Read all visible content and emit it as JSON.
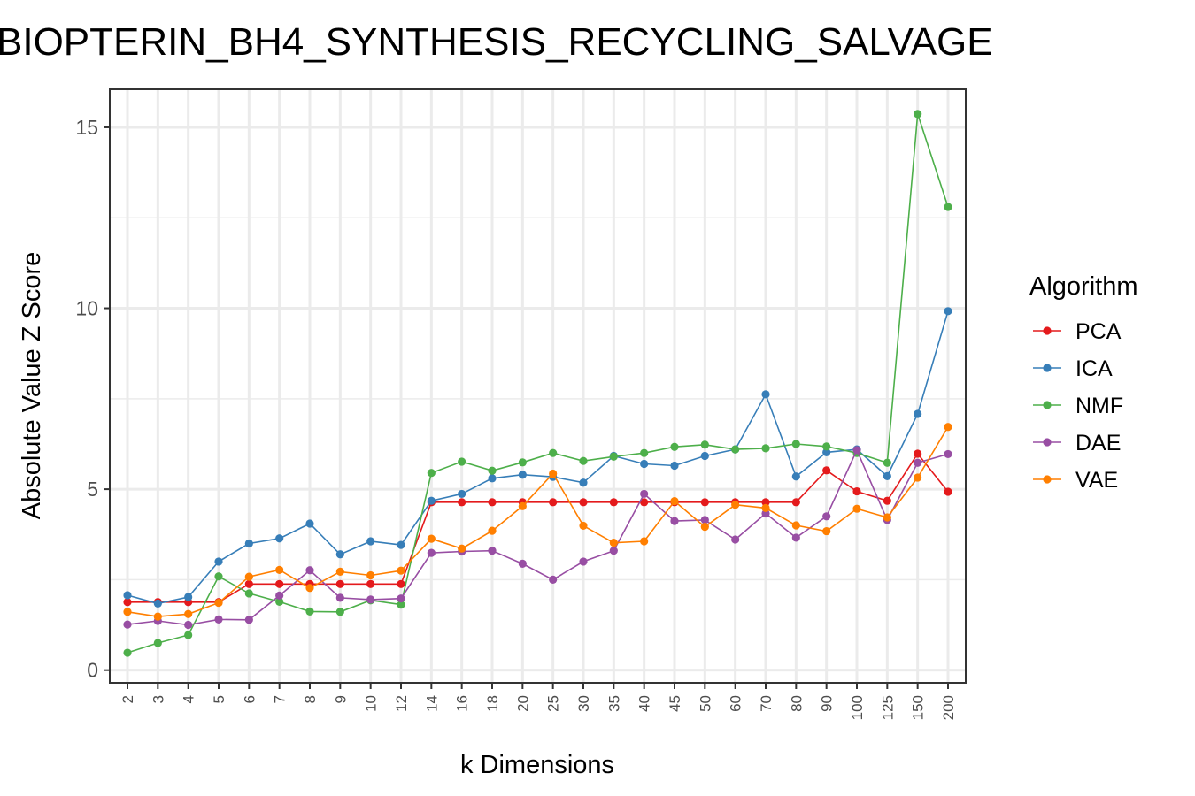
{
  "chart_data": {
    "type": "line",
    "title": "BIOPTERIN_BH4_SYNTHESIS_RECYCLING_SALVAGE",
    "xlabel": "k Dimensions",
    "ylabel": "Absolute Value Z Score",
    "ylim": [
      -0.35,
      16.05
    ],
    "yticks": [
      0,
      5,
      10,
      15
    ],
    "grid": true,
    "legend_title": "Algorithm",
    "legend_position": "right",
    "categories": [
      "2",
      "3",
      "4",
      "5",
      "6",
      "7",
      "8",
      "9",
      "10",
      "12",
      "14",
      "16",
      "18",
      "20",
      "25",
      "30",
      "35",
      "40",
      "45",
      "50",
      "60",
      "70",
      "80",
      "90",
      "100",
      "125",
      "150",
      "200"
    ],
    "series": [
      {
        "name": "PCA",
        "color": "#e41a1c",
        "values": [
          1.88,
          1.88,
          1.88,
          1.88,
          2.38,
          2.38,
          2.38,
          2.38,
          2.38,
          2.38,
          4.64,
          4.64,
          4.64,
          4.64,
          4.64,
          4.64,
          4.64,
          4.64,
          4.64,
          4.64,
          4.64,
          4.64,
          4.64,
          5.52,
          4.94,
          4.68,
          5.98,
          4.93
        ]
      },
      {
        "name": "ICA",
        "color": "#377eb8",
        "values": [
          2.07,
          1.84,
          2.02,
          3.0,
          3.5,
          3.64,
          4.05,
          3.2,
          3.56,
          3.46,
          4.68,
          4.87,
          5.3,
          5.4,
          5.34,
          5.18,
          5.92,
          5.7,
          5.65,
          5.92,
          6.1,
          7.62,
          5.35,
          6.02,
          6.1,
          5.36,
          7.08,
          9.92
        ]
      },
      {
        "name": "NMF",
        "color": "#4daf4a",
        "values": [
          0.48,
          0.75,
          0.97,
          2.59,
          2.12,
          1.89,
          1.62,
          1.61,
          1.93,
          1.81,
          5.45,
          5.76,
          5.51,
          5.74,
          6.0,
          5.78,
          5.9,
          6.0,
          6.17,
          6.23,
          6.1,
          6.13,
          6.25,
          6.18,
          6.0,
          5.73,
          15.37,
          12.8
        ]
      },
      {
        "name": "DAE",
        "color": "#984ea3",
        "values": [
          1.26,
          1.36,
          1.25,
          1.4,
          1.39,
          2.06,
          2.76,
          2.0,
          1.95,
          1.98,
          3.24,
          3.28,
          3.3,
          2.94,
          2.5,
          3.0,
          3.3,
          4.87,
          4.12,
          4.15,
          3.61,
          4.33,
          3.66,
          4.25,
          6.08,
          4.15,
          5.73,
          5.97
        ]
      },
      {
        "name": "VAE",
        "color": "#ff7f00",
        "values": [
          1.61,
          1.48,
          1.55,
          1.86,
          2.58,
          2.77,
          2.27,
          2.72,
          2.62,
          2.75,
          3.63,
          3.36,
          3.85,
          4.53,
          5.43,
          3.99,
          3.52,
          3.56,
          4.67,
          3.96,
          4.57,
          4.48,
          4.0,
          3.84,
          4.46,
          4.22,
          5.32,
          6.72
        ]
      }
    ]
  }
}
